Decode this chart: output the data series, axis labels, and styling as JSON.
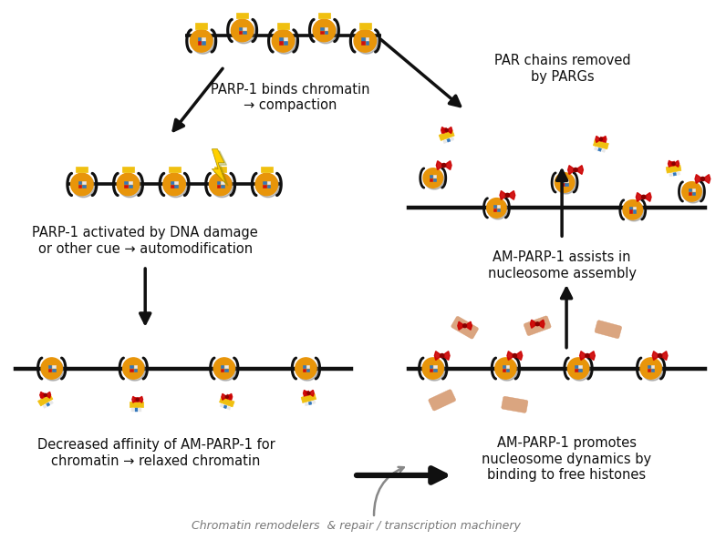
{
  "bg_color": "#ffffff",
  "text_labels": {
    "top_center": "PARP-1 binds chromatin\n→ compaction",
    "top_right": "PAR chains removed\nby PARGs",
    "left_mid": "PARP-1 activated by DNA damage\nor other cue → automodification",
    "right_mid": "AM-PARP-1 assists in\nnucleosome assembly",
    "bottom_left": "Decreased affinity of AM-PARP-1 for\nchromatin → relaxed chromatin",
    "bottom_right": "AM-PARP-1 promotes\nnucleosome dynamics by\nbinding to free histones",
    "bottom_center_italic": "Chromatin remodelers  & repair / transcription machinery"
  },
  "colors": {
    "nuc_orange": "#E8950A",
    "nuc_shadow": "#B8720A",
    "nuc_tan": "#D4A060",
    "parp_yellow": "#F0C010",
    "histone_red": "#CC1010",
    "histone_blue": "#3377BB",
    "histone_white": "#E8E8E8",
    "histone_gray": "#AAAAAA",
    "dna_black": "#101010",
    "par_red": "#CC0000",
    "lightning_yellow": "#FFD000",
    "lightning_shadow": "#AA8800",
    "arrow_black": "#101010",
    "arrow_gray": "#888888",
    "text_black": "#101010",
    "free_histone_tan": "#D4956A"
  },
  "fontsize_main": 10.5,
  "fontsize_italic": 9.0,
  "figsize": [
    7.96,
    6.04
  ],
  "dpi": 100
}
